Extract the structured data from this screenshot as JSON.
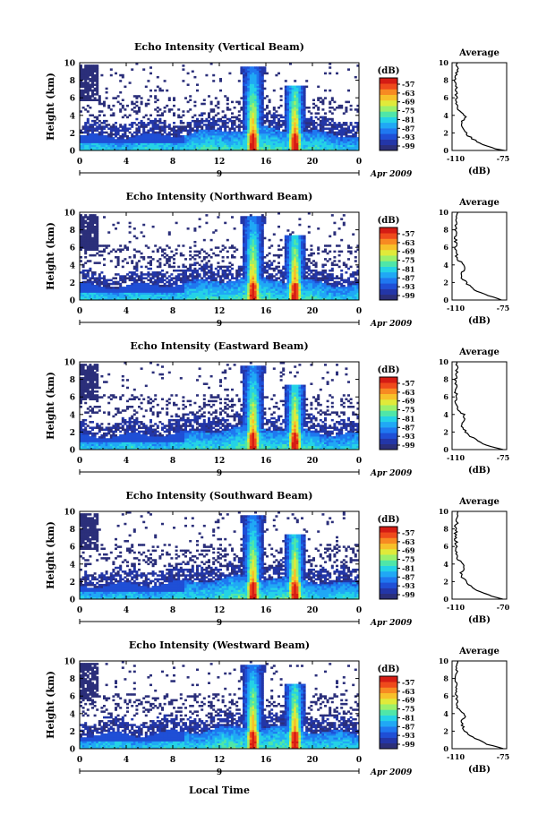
{
  "chart_data": {
    "type": "heatmap",
    "panels": [
      {
        "title": "Echo Intensity (Vertical Beam)",
        "avg_xlim": [
          "-110",
          "-75"
        ]
      },
      {
        "title": "Echo Intensity (Northward Beam)",
        "avg_xlim": [
          "-110",
          "-75"
        ]
      },
      {
        "title": "Echo Intensity (Eastward Beam)",
        "avg_xlim": [
          "-110",
          "-75"
        ]
      },
      {
        "title": "Echo Intensity (Southward Beam)",
        "avg_xlim": [
          "-110",
          "-70"
        ]
      },
      {
        "title": "Echo Intensity (Westward Beam)",
        "avg_xlim": [
          "-110",
          "-75"
        ]
      }
    ],
    "ylabel": "Height (km)",
    "yticks": [
      "0",
      "2",
      "4",
      "6",
      "8",
      "10"
    ],
    "ylim": [
      0,
      10
    ],
    "xticks": [
      "0",
      "4",
      "8",
      "12",
      "16",
      "20",
      "0"
    ],
    "xlim": [
      0,
      24
    ],
    "day_label": "9",
    "date_label": "Apr 2009",
    "xlabel": "Local Time",
    "colorbar": {
      "label": "(dB)",
      "ticks": [
        "-57",
        "-63",
        "-69",
        "-75",
        "-81",
        "-87",
        "-93",
        "-99"
      ],
      "colors": [
        "#2b2f7a",
        "#2336a8",
        "#1f4fd6",
        "#1f78f0",
        "#20a8f5",
        "#25d2e6",
        "#4fe6a8",
        "#9cf06a",
        "#e0ea3a",
        "#f7c02a",
        "#f78a22",
        "#ef4a1c",
        "#d51c14"
      ]
    },
    "average_panel": {
      "title": "Average",
      "xlabel": "(dB)"
    },
    "echo_peaks_hours": [
      14.9,
      18.5
    ]
  }
}
